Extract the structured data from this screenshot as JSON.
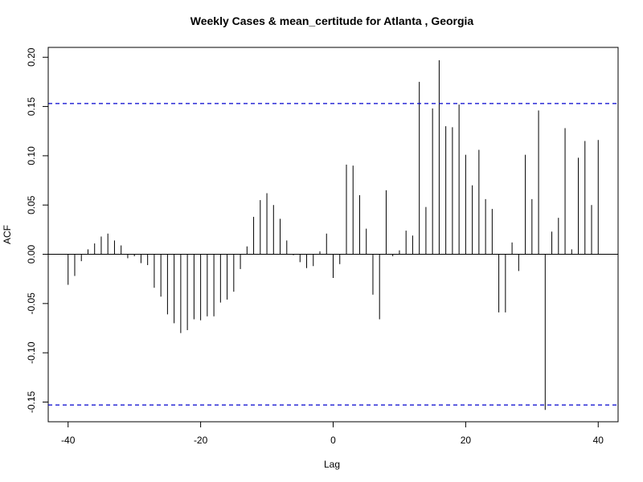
{
  "chart_data": {
    "type": "bar",
    "title": "Weekly Cases & mean_certitude for Atlanta , Georgia",
    "xlabel": "Lag",
    "ylabel": "ACF",
    "xlim": [
      -43,
      43
    ],
    "ylim": [
      -0.17,
      0.21
    ],
    "x_ticks": [
      -40,
      -20,
      0,
      20,
      40
    ],
    "x_tick_labels": [
      "-40",
      "-20",
      "0",
      "20",
      "40"
    ],
    "y_ticks": [
      -0.15,
      -0.1,
      -0.05,
      0.0,
      0.05,
      0.1,
      0.15,
      0.2
    ],
    "y_tick_labels": [
      "-0.15",
      "-0.10",
      "-0.05",
      "0.00",
      "0.05",
      "0.10",
      "0.15",
      "0.20"
    ],
    "confidence_bounds": [
      0.153,
      -0.153
    ],
    "bound_color": "#0000cd",
    "bar_color": "#000000",
    "x": [
      -40,
      -39,
      -38,
      -37,
      -36,
      -35,
      -34,
      -33,
      -32,
      -31,
      -30,
      -29,
      -28,
      -27,
      -26,
      -25,
      -24,
      -23,
      -22,
      -21,
      -20,
      -19,
      -18,
      -17,
      -16,
      -15,
      -14,
      -13,
      -12,
      -11,
      -10,
      -9,
      -8,
      -7,
      -6,
      -5,
      -4,
      -3,
      -2,
      -1,
      0,
      1,
      2,
      3,
      4,
      5,
      6,
      7,
      8,
      9,
      10,
      11,
      12,
      13,
      14,
      15,
      16,
      17,
      18,
      19,
      20,
      21,
      22,
      23,
      24,
      25,
      26,
      27,
      28,
      29,
      30,
      31,
      32,
      33,
      34,
      35,
      36,
      37,
      38,
      39,
      40
    ],
    "values": [
      -0.031,
      -0.022,
      -0.007,
      0.005,
      0.011,
      0.018,
      0.021,
      0.014,
      0.009,
      -0.004,
      -0.002,
      -0.009,
      -0.011,
      -0.034,
      -0.043,
      -0.061,
      -0.07,
      -0.08,
      -0.077,
      -0.066,
      -0.067,
      -0.063,
      -0.063,
      -0.049,
      -0.046,
      -0.038,
      -0.015,
      0.008,
      0.038,
      0.055,
      0.062,
      0.05,
      0.036,
      0.014,
      -0.001,
      -0.008,
      -0.014,
      -0.012,
      0.003,
      0.021,
      -0.024,
      -0.01,
      0.091,
      0.09,
      0.06,
      0.026,
      -0.041,
      -0.066,
      0.065,
      -0.002,
      0.004,
      0.024,
      0.019,
      0.175,
      0.048,
      0.148,
      0.197,
      0.13,
      0.129,
      0.152,
      0.101,
      0.07,
      0.106,
      0.056,
      0.046,
      -0.059,
      -0.059,
      0.012,
      -0.017,
      0.101,
      0.056,
      0.146,
      -0.158,
      0.023,
      0.037,
      0.128,
      0.005,
      0.098,
      0.115,
      0.05,
      0.116
    ]
  }
}
